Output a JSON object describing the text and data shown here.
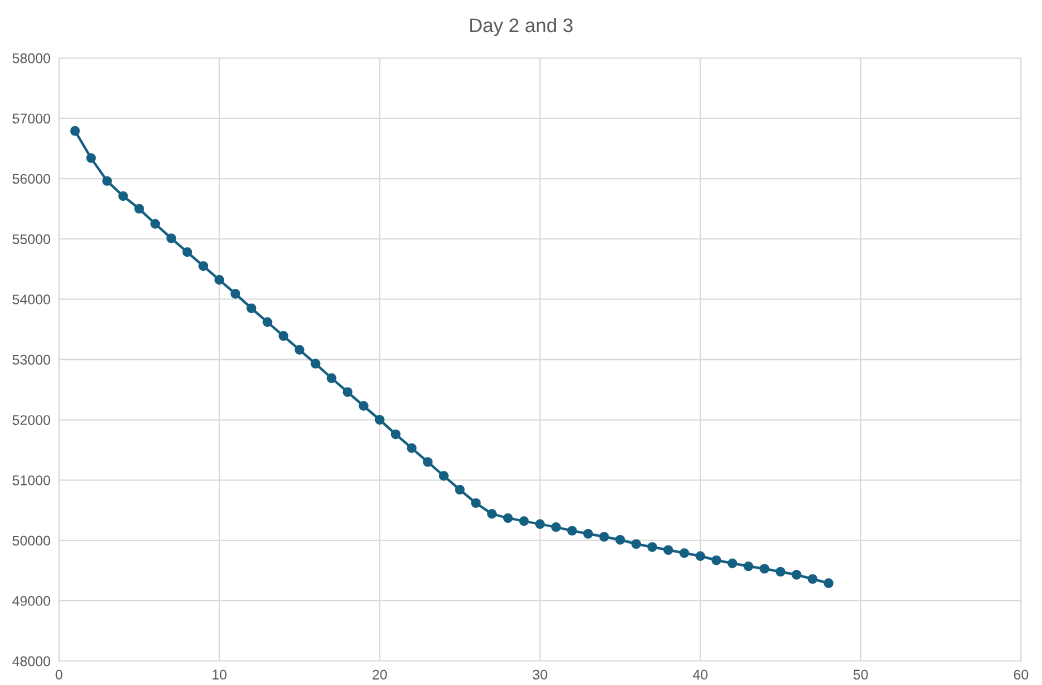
{
  "chart_data": {
    "type": "line",
    "title": "Day 2 and 3",
    "x": [
      1,
      2,
      3,
      4,
      5,
      6,
      7,
      8,
      9,
      10,
      11,
      12,
      13,
      14,
      15,
      16,
      17,
      18,
      19,
      20,
      21,
      22,
      23,
      24,
      25,
      26,
      27,
      28,
      29,
      30,
      31,
      32,
      33,
      34,
      35,
      36,
      37,
      38,
      39,
      40,
      41,
      42,
      43,
      44,
      45,
      46,
      47,
      48
    ],
    "series": [
      {
        "color": "#156082",
        "values": [
          56790,
          56340,
          55960,
          55710,
          55500,
          55250,
          55010,
          54780,
          54550,
          54320,
          54090,
          53850,
          53620,
          53390,
          53160,
          52930,
          52690,
          52460,
          52230,
          52000,
          51760,
          51530,
          51300,
          51070,
          50840,
          50620,
          50440,
          50370,
          50320,
          50270,
          50220,
          50160,
          50110,
          50060,
          50010,
          49940,
          49890,
          49840,
          49790,
          49740,
          49670,
          49620,
          49570,
          49530,
          49480,
          49430,
          49360,
          49290
        ]
      }
    ],
    "xlim": [
      0,
      60
    ],
    "xticks": [
      0,
      10,
      20,
      30,
      40,
      50,
      60
    ],
    "ylim": [
      48000,
      58000
    ],
    "yticks": [
      48000,
      49000,
      50000,
      51000,
      52000,
      53000,
      54000,
      55000,
      56000,
      57000,
      58000
    ],
    "grid": true,
    "marker": "circle",
    "line_style": "solid",
    "legend": false
  }
}
